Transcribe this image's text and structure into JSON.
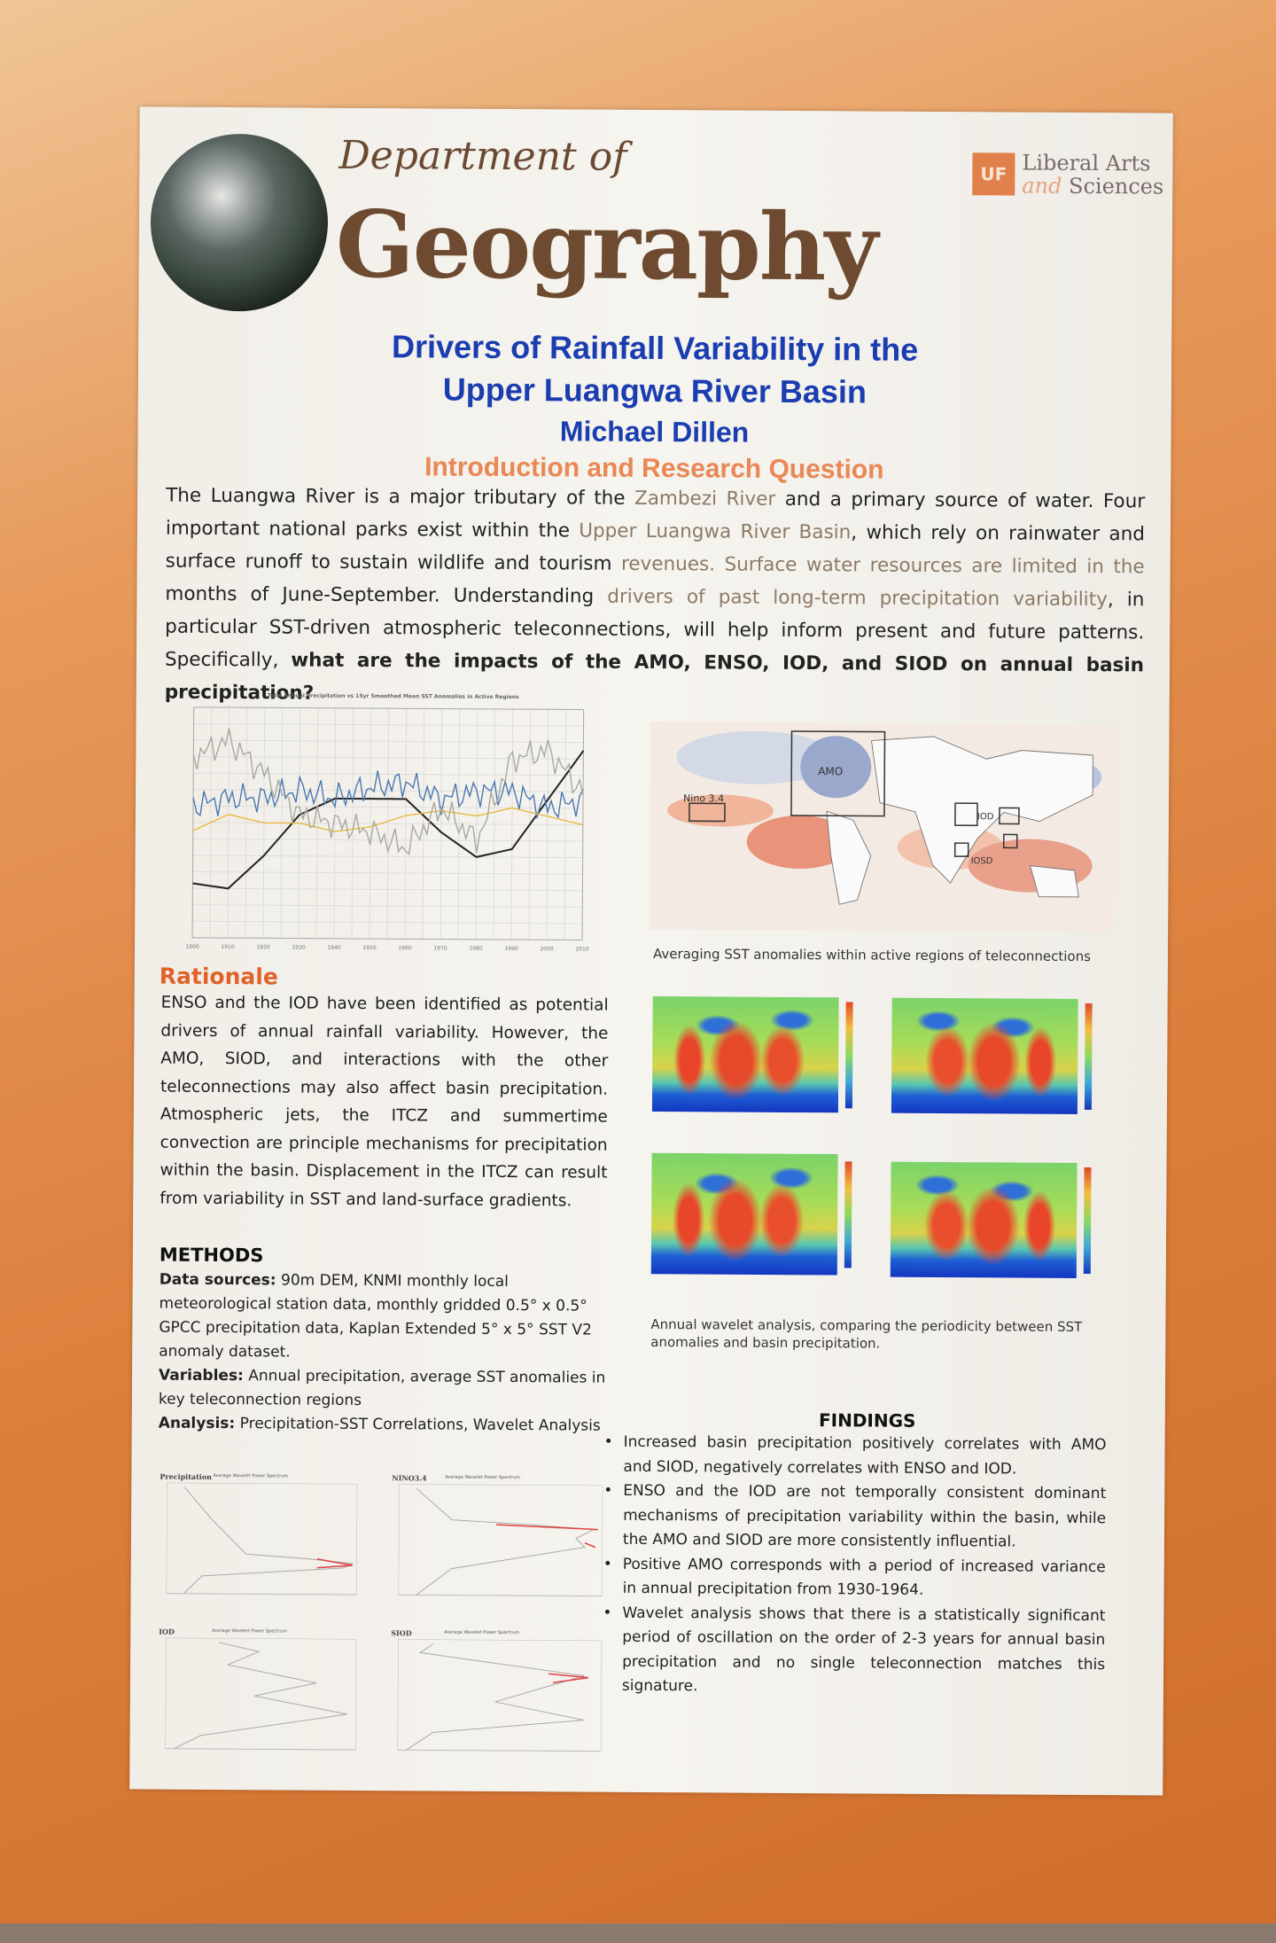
{
  "header": {
    "department_prefix": "Department of",
    "department_name": "Geography",
    "logo": {
      "badge": "UF",
      "line1": "Liberal Arts",
      "line2_italic": "and",
      "line2": "Sciences",
      "color": "#e0804a"
    }
  },
  "title": {
    "line1": "Drivers of Rainfall Variability in the",
    "line2": "Upper Luangwa River Basin",
    "author": "Michael Dillen",
    "color": "#1a3db0"
  },
  "intro": {
    "heading": "Introduction and Research Question",
    "p1": "The Luangwa River is a major tributary of the ",
    "p1b": "Zambezi River",
    "p1c": " and a primary source of water. Four important national parks exist within the ",
    "p1d": "Upper Luangwa River Basin",
    "p1e": ", which rely on rainwater and surface runoff to sustain wildlife and tourism ",
    "p1f": "revenues. Surface water resources are limited in the",
    "p1g": " months of June-September. Understanding ",
    "p1h": "drivers of past long-term precipitation variability",
    "p1i": ", in particular SST-driven atmospheric teleconnections, will help inform present and future patterns. Specifically, ",
    "question": "what are the impacts of the AMO, ENSO, IOD, and SIOD on annual basin precipitation?"
  },
  "chart_data": {
    "type": "line",
    "title": "Total Annual Precipitation vs 15yr Smoothed Mean SST Anomalies in Active Regions",
    "x": [
      1900,
      1910,
      1920,
      1930,
      1940,
      1950,
      1960,
      1970,
      1980,
      1990,
      2000,
      2010
    ],
    "ylim": [
      -0.8,
      0.6
    ],
    "y2lim": [
      0,
      1800
    ],
    "grid": true,
    "legend": "bottom",
    "series": [
      {
        "color": "#222222",
        "values": [
          -0.47,
          -0.5,
          -0.3,
          -0.05,
          0.05,
          0.05,
          0.05,
          -0.15,
          -0.3,
          -0.25,
          0.05,
          0.35
        ]
      },
      {
        "color": "#4a78b0",
        "values": [
          0.0,
          0.05,
          0.05,
          0.1,
          0.05,
          0.12,
          0.15,
          0.05,
          0.1,
          0.1,
          0.0,
          0.05
        ]
      },
      {
        "color": "#e8b840",
        "values": [
          -0.15,
          -0.05,
          -0.1,
          -0.1,
          -0.15,
          -0.12,
          -0.05,
          -0.02,
          -0.05,
          0.0,
          -0.05,
          -0.1
        ]
      },
      {
        "color": "#a8a8a0",
        "values": [
          0.3,
          0.4,
          0.2,
          -0.05,
          -0.1,
          -0.15,
          -0.25,
          0.0,
          -0.2,
          0.3,
          0.35,
          0.1
        ]
      }
    ]
  },
  "map": {
    "labels": [
      "Nino 3.4",
      "AMO",
      "IOD",
      "IOSD"
    ],
    "caption": "Averaging SST anomalies within active regions of teleconnections"
  },
  "rationale": {
    "heading": "Rationale",
    "text": "ENSO and the IOD have been identified as potential drivers of annual rainfall variability. However, the AMO, SIOD, and interactions with the other teleconnections may also affect basin precipitation. Atmospheric jets, the ITCZ and summertime convection are principle mechanisms for precipitation within the basin. Displacement in the ITCZ can result from variability in SST and land-surface gradients."
  },
  "methods": {
    "heading": "METHODS",
    "ds_label": "Data sources:",
    "ds": " 90m DEM, KNMI monthly local meteorological station data, monthly gridded 0.5° x 0.5° GPCC precipitation data, Kaplan Extended 5° x 5° SST V2 anomaly dataset.",
    "var_label": "Variables:",
    "var": " Annual precipitation, average SST anomalies in key teleconnection regions",
    "an_label": "Analysis:",
    "an": " Precipitation-SST Correlations,  Wavelet Analysis"
  },
  "wavelet": {
    "caption": "Annual wavelet analysis, comparing the periodicity between SST anomalies and basin precipitation."
  },
  "findings": {
    "heading": "FINDINGS",
    "items": [
      "Increased basin precipitation positively correlates with AMO and SIOD, negatively correlates with ENSO and IOD.",
      "ENSO and the IOD are not temporally consistent dominant mechanisms of precipitation variability within the basin, while the AMO and SIOD are more consistently influential.",
      "Positive AMO corresponds with a period of increased variance in annual precipitation from 1930-1964.",
      "Wavelet analysis shows that there is a statistically significant period of oscillation on the order of 2-3 years for annual basin precipitation and no single teleconnection matches this signature."
    ]
  },
  "spectra": {
    "subtitle": "Average Wavelet Power Spectrum",
    "panels": [
      "Precipitation",
      "NINO3.4",
      "IOD",
      "SIOD"
    ]
  }
}
